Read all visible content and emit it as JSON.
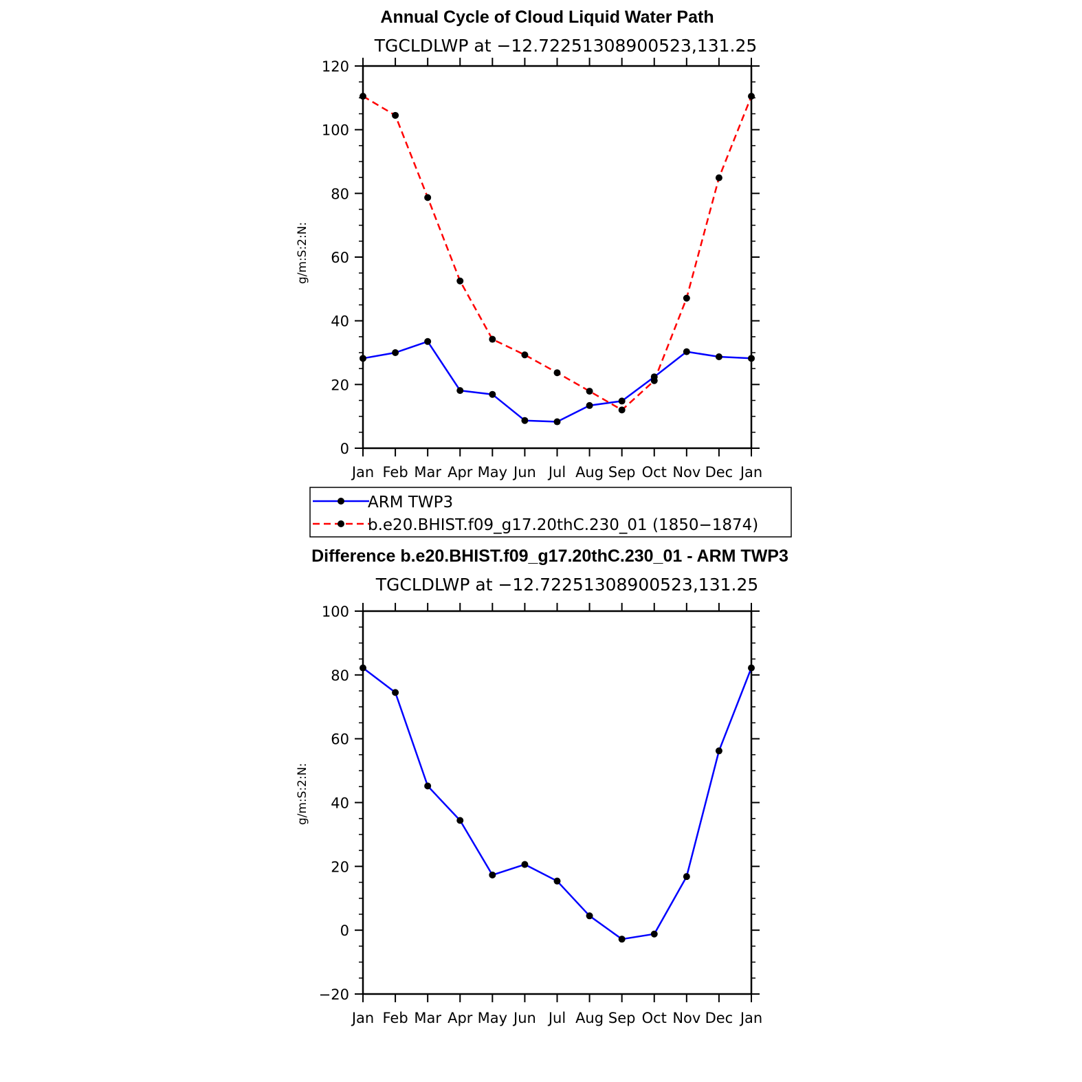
{
  "chart_data": [
    {
      "type": "line",
      "title": "Annual Cycle of Cloud Liquid Water Path",
      "subtitle": "TGCLDLWP at −12.72251308900523,131.25",
      "xlabel": "",
      "ylabel": "g/m:S:2:N:",
      "categories": [
        "Jan",
        "Feb",
        "Mar",
        "Apr",
        "May",
        "Jun",
        "Jul",
        "Aug",
        "Sep",
        "Oct",
        "Nov",
        "Dec",
        "Jan"
      ],
      "ylim": [
        0,
        120
      ],
      "yticks": [
        "0",
        "20",
        "40",
        "60",
        "80",
        "100",
        "120"
      ],
      "series": [
        {
          "name": "ARM TWP3",
          "color": "#0000ff",
          "dash": "solid",
          "values": [
            28.2,
            30.0,
            33.5,
            18.1,
            16.9,
            8.7,
            8.3,
            13.4,
            14.8,
            22.4,
            30.3,
            28.7,
            28.2
          ]
        },
        {
          "name": "b.e20.BHIST.f09_g17.20thC.230_01 (1850−1874)",
          "color": "#ff0000",
          "dash": "dashed",
          "values": [
            110.5,
            104.5,
            78.7,
            52.5,
            34.2,
            29.3,
            23.7,
            17.9,
            12.0,
            21.2,
            47.1,
            84.9,
            110.5
          ]
        }
      ],
      "legend": {
        "position": "bottom",
        "entries": [
          "ARM TWP3",
          "b.e20.BHIST.f09_g17.20thC.230_01 (1850−1874)"
        ]
      }
    },
    {
      "type": "line",
      "title": "Difference b.e20.BHIST.f09_g17.20thC.230_01 - ARM TWP3",
      "subtitle": "TGCLDLWP at −12.72251308900523,131.25",
      "xlabel": "",
      "ylabel": "g/m:S:2:N:",
      "categories": [
        "Jan",
        "Feb",
        "Mar",
        "Apr",
        "May",
        "Jun",
        "Jul",
        "Aug",
        "Sep",
        "Oct",
        "Nov",
        "Dec",
        "Jan"
      ],
      "ylim": [
        -20,
        100
      ],
      "yticks": [
        "−20",
        "0",
        "20",
        "40",
        "60",
        "80",
        "100"
      ],
      "series": [
        {
          "name": "Difference",
          "color": "#0000ff",
          "dash": "solid",
          "values": [
            82.2,
            74.5,
            45.2,
            34.4,
            17.3,
            20.6,
            15.4,
            4.5,
            -2.8,
            -1.2,
            16.8,
            56.2,
            82.2
          ]
        }
      ]
    }
  ]
}
